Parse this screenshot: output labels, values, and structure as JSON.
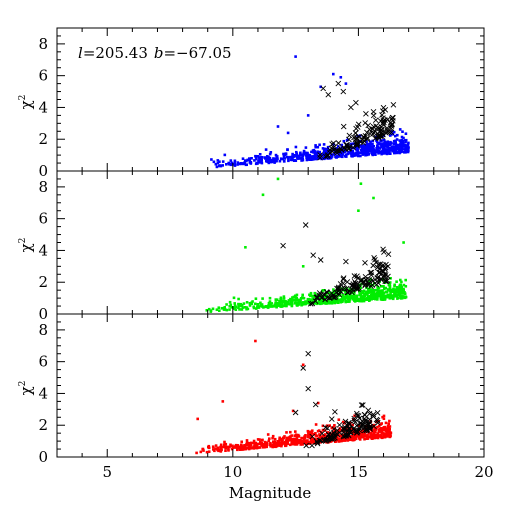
{
  "figure": {
    "annotation": {
      "l_symbol": "l",
      "l_value": "=205.43",
      "b_symbol": "b",
      "b_value": "=−67.05"
    },
    "xlabel": "Magnitude",
    "ylabel_base": "χ",
    "ylabel_sup": "2"
  },
  "chart_data": [
    {
      "type": "scatter",
      "panel": "top",
      "xlim": [
        3,
        20
      ],
      "ylim": [
        0,
        9
      ],
      "xticks": [
        5,
        10,
        15,
        20
      ],
      "yticks": [
        0,
        2,
        4,
        6,
        8
      ],
      "grid": false,
      "xlabel": "",
      "ylabel": "χ²",
      "series": [
        {
          "marker": "square",
          "color": "#0000ff",
          "distribution": {
            "x_range": [
              9,
              17
            ],
            "y_typical": [
              0.2,
              1.5
            ],
            "count": 700
          },
          "outliers": [
            [
              12.5,
              7.2
            ],
            [
              11.8,
              2.8
            ],
            [
              12.2,
              2.4
            ],
            [
              13.5,
              5.3
            ],
            [
              14.0,
              6.1
            ],
            [
              14.3,
              5.9
            ],
            [
              14.5,
              5.5
            ],
            [
              13.0,
              3.5
            ]
          ]
        },
        {
          "marker": "cross",
          "color": "#000000",
          "distribution": {
            "x_range": [
              13.3,
              16.4
            ],
            "y_typical": [
              0.6,
              3.0
            ],
            "count": 120
          },
          "outliers": [
            [
              13.6,
              5.2
            ],
            [
              14.2,
              5.5
            ],
            [
              14.4,
              5.0
            ],
            [
              13.8,
              4.8
            ],
            [
              14.9,
              4.3
            ],
            [
              15.3,
              3.6
            ],
            [
              14.7,
              4.0
            ]
          ]
        }
      ]
    },
    {
      "type": "scatter",
      "panel": "middle",
      "xlim": [
        3,
        20
      ],
      "ylim": [
        0,
        9
      ],
      "xticks": [
        5,
        10,
        15,
        20
      ],
      "yticks": [
        0,
        2,
        4,
        6,
        8
      ],
      "grid": false,
      "xlabel": "",
      "ylabel": "χ²",
      "series": [
        {
          "marker": "square",
          "color": "#00ee00",
          "distribution": {
            "x_range": [
              8.8,
              16.9
            ],
            "y_typical": [
              0.1,
              1.3
            ],
            "count": 700
          },
          "outliers": [
            [
              11.8,
              8.5
            ],
            [
              15.1,
              8.2
            ],
            [
              11.2,
              7.5
            ],
            [
              15.6,
              7.3
            ],
            [
              15.0,
              6.5
            ],
            [
              10.5,
              4.2
            ],
            [
              16.8,
              4.5
            ],
            [
              12.8,
              3.0
            ]
          ]
        },
        {
          "marker": "cross",
          "color": "#000000",
          "distribution": {
            "x_range": [
              13.0,
              16.2
            ],
            "y_typical": [
              0.5,
              2.6
            ],
            "count": 120
          },
          "outliers": [
            [
              12.9,
              5.6
            ],
            [
              12.0,
              4.3
            ],
            [
              13.2,
              3.7
            ],
            [
              13.5,
              3.4
            ],
            [
              14.5,
              3.3
            ]
          ]
        }
      ]
    },
    {
      "type": "scatter",
      "panel": "bottom",
      "xlim": [
        3,
        20
      ],
      "ylim": [
        0,
        9
      ],
      "xticks": [
        5,
        10,
        15,
        20
      ],
      "yticks": [
        0,
        2,
        4,
        6,
        8
      ],
      "grid": false,
      "xlabel": "Magnitude",
      "ylabel": "χ²",
      "series": [
        {
          "marker": "square",
          "color": "#ff0000",
          "distribution": {
            "x_range": [
              8.4,
              16.3
            ],
            "y_typical": [
              0.2,
              1.6
            ],
            "count": 750
          },
          "outliers": [
            [
              10.9,
              7.3
            ],
            [
              12.8,
              5.8
            ],
            [
              13.4,
              3.4
            ],
            [
              9.6,
              3.5
            ],
            [
              8.6,
              2.4
            ],
            [
              12.4,
              2.9
            ]
          ]
        },
        {
          "marker": "cross",
          "color": "#000000",
          "distribution": {
            "x_range": [
              12.8,
              15.8
            ],
            "y_typical": [
              0.5,
              2.3
            ],
            "count": 120
          },
          "outliers": [
            [
              13.0,
              6.5
            ],
            [
              12.8,
              5.6
            ],
            [
              13.0,
              4.3
            ],
            [
              13.3,
              3.3
            ],
            [
              12.5,
              2.8
            ]
          ]
        }
      ]
    }
  ]
}
